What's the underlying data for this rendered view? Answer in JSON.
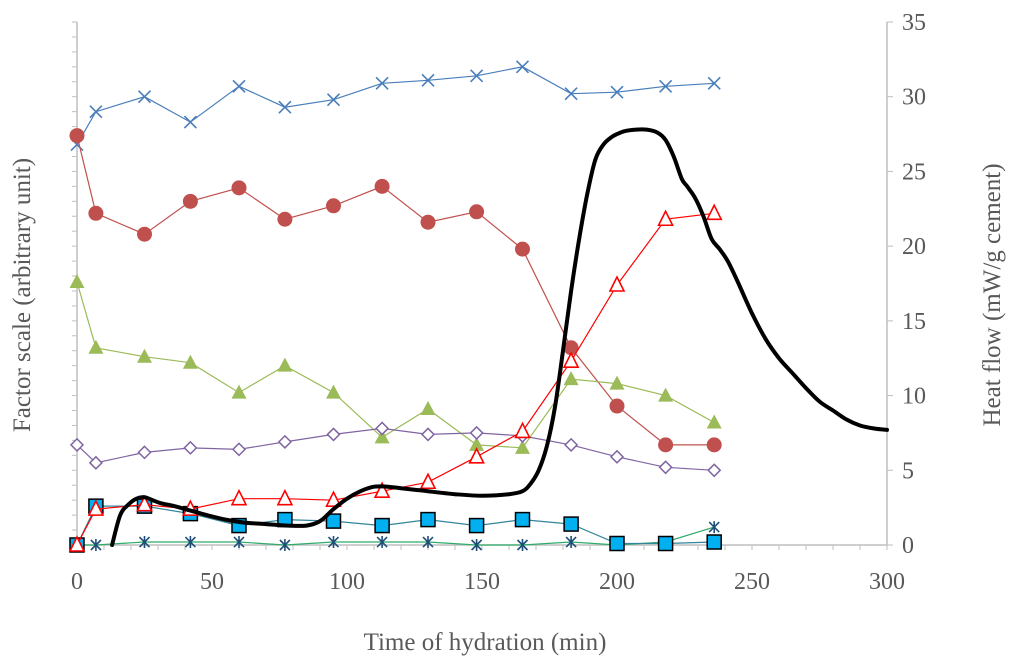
{
  "chart_data": {
    "type": "line",
    "title": "",
    "xlabel": "Time of hydration (min)",
    "ylabel_left": "Factor scale (arbitrary unit)",
    "ylabel_right": "Heat flow (mW/g cement)",
    "xlim": [
      0,
      300
    ],
    "ylim_right": [
      0,
      35
    ],
    "ylim_left": [
      0,
      35
    ],
    "x_ticks": [
      "0",
      "50",
      "100",
      "150",
      "200",
      "250",
      "300"
    ],
    "y_right_ticks": [
      "0",
      "5",
      "10",
      "15",
      "20",
      "25",
      "30",
      "35"
    ],
    "grid": false,
    "legend": "none",
    "factor_series": [
      {
        "color": "#4a7ebb",
        "marker": "x",
        "x": [
          0,
          7,
          25,
          42,
          60,
          77,
          95,
          113,
          130,
          148,
          165,
          183,
          200,
          218,
          236
        ],
        "y": [
          26.8,
          29.0,
          30.0,
          28.3,
          30.7,
          29.3,
          29.8,
          30.9,
          31.1,
          31.4,
          32.0,
          30.2,
          30.3,
          30.7,
          30.9
        ]
      },
      {
        "color": "#c0504d",
        "marker": "circle",
        "x": [
          0,
          7,
          25,
          42,
          60,
          77,
          95,
          113,
          130,
          148,
          165,
          183,
          200,
          218,
          236
        ],
        "y": [
          27.4,
          22.2,
          20.8,
          23.0,
          23.9,
          21.8,
          22.7,
          24.0,
          21.6,
          22.3,
          19.8,
          13.2,
          9.3,
          6.7,
          6.7
        ]
      },
      {
        "color": "#9bbb59",
        "marker": "triangle",
        "x": [
          0,
          7,
          25,
          42,
          60,
          77,
          95,
          113,
          130,
          148,
          165,
          183,
          200,
          218,
          236
        ],
        "y": [
          17.6,
          13.2,
          12.6,
          12.2,
          10.2,
          12.0,
          10.2,
          7.2,
          9.1,
          6.7,
          6.5,
          11.1,
          10.8,
          10.0,
          8.2
        ]
      },
      {
        "color": "#8064a2",
        "marker": "diamond-open",
        "x": [
          0,
          7,
          25,
          42,
          60,
          77,
          95,
          113,
          130,
          148,
          165,
          183,
          200,
          218,
          236
        ],
        "y": [
          6.7,
          5.5,
          6.2,
          6.5,
          6.4,
          6.9,
          7.4,
          7.8,
          7.4,
          7.5,
          7.3,
          6.7,
          5.9,
          5.2,
          5.0
        ]
      },
      {
        "color": "#1f4e79",
        "marker": "asterisk",
        "line_color": "#2eab6a",
        "x": [
          0,
          7,
          25,
          42,
          60,
          77,
          95,
          113,
          130,
          148,
          165,
          183,
          200,
          218,
          236
        ],
        "y": [
          0,
          0,
          0.2,
          0.2,
          0.2,
          0.0,
          0.2,
          0.2,
          0.2,
          0.0,
          0.0,
          0.2,
          0.0,
          0.2,
          1.2
        ]
      },
      {
        "color": "#00b0f0",
        "marker": "square",
        "line_color": "#31859c",
        "x": [
          0,
          7,
          25,
          42,
          60,
          77,
          95,
          113,
          130,
          148,
          165,
          183,
          200,
          218,
          236
        ],
        "y": [
          0,
          2.6,
          2.6,
          2.1,
          1.3,
          1.7,
          1.6,
          1.3,
          1.7,
          1.3,
          1.7,
          1.4,
          0.1,
          0.1,
          0.2
        ]
      },
      {
        "color": "#ff0000",
        "marker": "triangle-open",
        "x": [
          0,
          7,
          25,
          42,
          60,
          77,
          95,
          113,
          130,
          148,
          165,
          183,
          200,
          218,
          236
        ],
        "y": [
          0,
          2.4,
          2.7,
          2.4,
          3.1,
          3.1,
          3.0,
          3.6,
          4.2,
          5.9,
          7.6,
          12.3,
          17.4,
          21.8,
          22.2
        ]
      }
    ],
    "heat_flow": {
      "color": "#000000",
      "x": [
        13,
        16,
        19,
        22,
        25,
        28,
        31,
        36,
        42,
        48,
        55,
        62,
        70,
        78,
        85,
        90,
        95,
        100,
        105,
        110,
        115,
        120,
        125,
        130,
        140,
        150,
        160,
        165,
        168,
        171,
        174,
        177,
        180,
        183,
        186,
        189,
        192,
        195,
        198,
        200,
        203,
        207,
        211,
        215,
        218,
        221,
        224,
        226,
        229,
        232,
        235,
        238,
        241,
        245,
        250,
        255,
        260,
        265,
        270,
        275,
        280,
        285,
        290,
        295,
        300
      ],
      "y": [
        0,
        2.0,
        2.7,
        3.1,
        3.2,
        3.0,
        2.8,
        2.6,
        2.3,
        2.0,
        1.7,
        1.5,
        1.4,
        1.3,
        1.3,
        1.6,
        2.4,
        3.1,
        3.6,
        3.9,
        3.9,
        3.8,
        3.7,
        3.6,
        3.4,
        3.3,
        3.4,
        3.6,
        4.1,
        5.0,
        6.6,
        9.2,
        13.0,
        17.0,
        20.5,
        23.5,
        25.8,
        26.8,
        27.3,
        27.5,
        27.7,
        27.8,
        27.8,
        27.6,
        27.1,
        26.0,
        24.5,
        24.0,
        23.2,
        22.0,
        20.5,
        19.8,
        19.0,
        17.5,
        15.5,
        13.8,
        12.5,
        11.5,
        10.5,
        9.6,
        9.0,
        8.4,
        8.0,
        7.8,
        7.7
      ]
    }
  }
}
